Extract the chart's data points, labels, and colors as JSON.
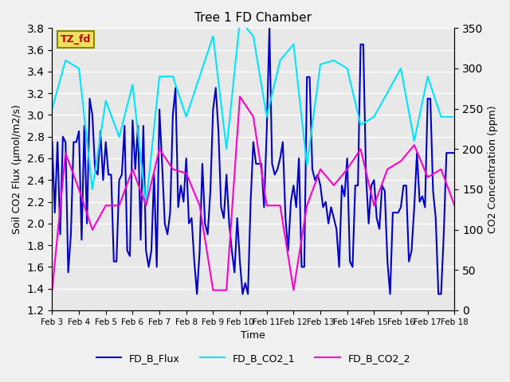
{
  "title": "Tree 1 FD Chamber",
  "xlabel": "Time",
  "ylabel_left": "Soil CO2 Flux (μmol/m2/s)",
  "ylabel_right": "CO2 Concentration (ppm)",
  "ylim_left": [
    1.2,
    3.8
  ],
  "ylim_right": [
    0,
    350
  ],
  "yticks_left": [
    1.2,
    1.4,
    1.6,
    1.8,
    2.0,
    2.2,
    2.4,
    2.6,
    2.8,
    3.0,
    3.2,
    3.4,
    3.6,
    3.8
  ],
  "yticks_right": [
    0,
    50,
    100,
    150,
    200,
    250,
    300,
    350
  ],
  "annotation_text": "TZ_fd",
  "annotation_color": "#cc0000",
  "annotation_bg": "#f0e060",
  "background_color": "#e8e8e8",
  "grid_color": "#ffffff",
  "line_flux_color": "#0000cc",
  "line_co2_1_color": "#00e5ff",
  "line_co2_2_color": "#ff00cc",
  "line_width": 1.5,
  "legend_labels": [
    "FD_B_Flux",
    "FD_B_CO2_1",
    "FD_B_CO2_2"
  ],
  "xtick_labels": [
    "Feb 3",
    "Feb 4",
    "Feb 5",
    "Feb 6",
    "Feb 7",
    "Feb 8",
    "Feb 9",
    "Feb 10",
    "Feb 11",
    "Feb 12",
    "Feb 13",
    "Feb 14",
    "Feb 15",
    "Feb 16",
    "Feb 17",
    "Feb 18"
  ],
  "flux_x": [
    3,
    3.1,
    3.2,
    3.3,
    3.4,
    3.5,
    3.6,
    3.7,
    3.8,
    3.9,
    4.0,
    4.1,
    4.2,
    4.3,
    4.4,
    4.5,
    4.6,
    4.7,
    4.8,
    4.9,
    5.0,
    5.1,
    5.2,
    5.3,
    5.4,
    5.5,
    5.6,
    5.7,
    5.8,
    5.9,
    6.0,
    6.1,
    6.2,
    6.3,
    6.4,
    6.5,
    6.6,
    6.7,
    6.8,
    6.9,
    7.0,
    7.1,
    7.2,
    7.3,
    7.4,
    7.5,
    7.6,
    7.7,
    7.8,
    7.9,
    8.0,
    8.1,
    8.2,
    8.3,
    8.4,
    8.5,
    8.6,
    8.7,
    8.8,
    8.9,
    9.0,
    9.1,
    9.2,
    9.3,
    9.4,
    9.5,
    9.6,
    9.7,
    9.8,
    9.9,
    10.0,
    10.1,
    10.2,
    10.3,
    10.4,
    10.5,
    10.6,
    10.7,
    10.8,
    10.9,
    11.0,
    11.1,
    11.2,
    11.3,
    11.4,
    11.5,
    11.6,
    11.7,
    11.8,
    11.9,
    12.0,
    12.1,
    12.2,
    12.3,
    12.4,
    12.5,
    12.6,
    12.7,
    12.8,
    12.9,
    13.0,
    13.1,
    13.2,
    13.3,
    13.4,
    13.5,
    13.6,
    13.7,
    13.8,
    13.9,
    14.0,
    14.1,
    14.2,
    14.3,
    14.4,
    14.5,
    14.6,
    14.7,
    14.8,
    14.9,
    15.0,
    15.1,
    15.2,
    15.3,
    15.4,
    15.5,
    15.6,
    15.7,
    15.8,
    15.9,
    16.0,
    16.1,
    16.2,
    16.3,
    16.4,
    16.5,
    16.6,
    16.7,
    16.8,
    16.9,
    17.0,
    17.1,
    17.2,
    17.3,
    17.4,
    17.5,
    17.6,
    17.7,
    17.8,
    17.9,
    18.0
  ],
  "flux_y": [
    2.75,
    2.1,
    2.75,
    1.9,
    2.8,
    2.75,
    1.55,
    1.9,
    2.75,
    2.75,
    2.85,
    1.85,
    2.9,
    2.0,
    3.15,
    3.0,
    2.5,
    2.45,
    2.85,
    2.4,
    2.75,
    2.45,
    2.45,
    1.65,
    1.65,
    2.4,
    2.45,
    2.9,
    1.75,
    1.7,
    2.95,
    2.5,
    2.9,
    1.85,
    2.9,
    1.75,
    1.6,
    1.75,
    2.45,
    1.6,
    3.05,
    2.55,
    2.0,
    1.9,
    2.1,
    3.0,
    3.25,
    2.15,
    2.35,
    2.2,
    2.6,
    2.0,
    2.05,
    1.65,
    1.35,
    1.75,
    2.55,
    2.0,
    1.9,
    2.3,
    3.05,
    3.25,
    2.85,
    2.15,
    2.05,
    2.45,
    2.0,
    1.75,
    1.55,
    2.05,
    1.65,
    1.35,
    1.45,
    1.35,
    2.2,
    2.75,
    2.55,
    2.55,
    2.55,
    2.15,
    2.85,
    3.8,
    2.55,
    2.45,
    2.5,
    2.6,
    2.75,
    2.05,
    1.75,
    2.2,
    2.35,
    2.15,
    2.6,
    1.6,
    1.6,
    3.35,
    3.35,
    2.5,
    2.4,
    2.45,
    2.35,
    2.15,
    2.2,
    2.0,
    2.15,
    2.05,
    1.95,
    1.6,
    2.35,
    2.25,
    2.6,
    1.65,
    1.6,
    2.35,
    2.35,
    3.65,
    3.65,
    2.45,
    2.0,
    2.35,
    2.4,
    2.05,
    1.95,
    2.35,
    2.3,
    1.65,
    1.35,
    2.1,
    2.1,
    2.1,
    2.15,
    2.35,
    2.35,
    1.65,
    1.75,
    2.15,
    2.65,
    2.2,
    2.25,
    2.15,
    3.15,
    3.15,
    2.3,
    2.05,
    1.35,
    1.35,
    1.9,
    2.65,
    2.65,
    2.65,
    2.65
  ],
  "co2_1_x": [
    3,
    3.5,
    4.0,
    4.5,
    5.0,
    5.5,
    6.0,
    6.5,
    7.0,
    7.5,
    8.0,
    8.5,
    9.0,
    9.5,
    10.0,
    10.5,
    11.0,
    11.5,
    12.0,
    12.5,
    13.0,
    13.5,
    14.0,
    14.5,
    15.0,
    15.5,
    16.0,
    16.5,
    17.0,
    17.5,
    18.0
  ],
  "co2_1_y": [
    250,
    310,
    300,
    150,
    260,
    215,
    280,
    130,
    290,
    290,
    240,
    290,
    340,
    200,
    360,
    340,
    240,
    310,
    330,
    180,
    305,
    310,
    300,
    230,
    240,
    270,
    300,
    210,
    290,
    240,
    240
  ],
  "co2_2_x": [
    3,
    3.5,
    4.0,
    4.5,
    5.0,
    5.5,
    6.0,
    6.5,
    7.0,
    7.5,
    8.0,
    8.5,
    9.0,
    9.5,
    10.0,
    10.5,
    11.0,
    11.5,
    12.0,
    12.5,
    13.0,
    13.5,
    14.0,
    14.5,
    15.0,
    15.5,
    16.0,
    16.5,
    17.0,
    17.5,
    18.0
  ],
  "co2_2_y": [
    25,
    195,
    150,
    100,
    130,
    130,
    175,
    130,
    200,
    175,
    170,
    130,
    25,
    25,
    265,
    240,
    130,
    130,
    25,
    130,
    175,
    155,
    175,
    200,
    130,
    175,
    185,
    205,
    165,
    175,
    130
  ]
}
